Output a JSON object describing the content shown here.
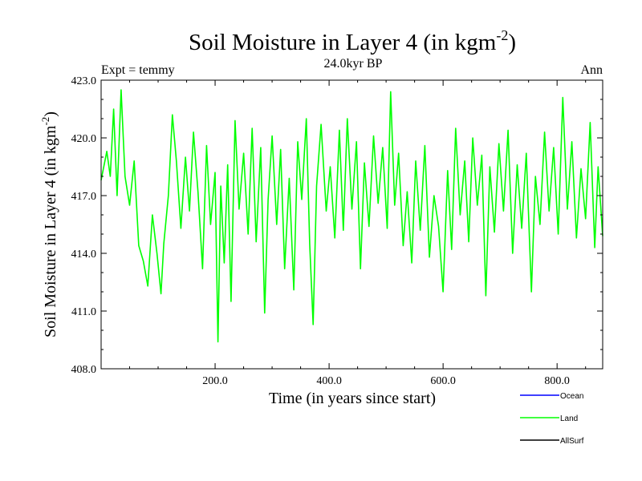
{
  "chart_data": {
    "type": "line",
    "title": "Soil Moisture in Layer 4 (in kgm",
    "title_sup": "-2",
    "title_end": ")",
    "subtitle": "24.0kyr BP",
    "left_label": "Expt = temmy",
    "right_label": "Ann",
    "xlabel": "Time (in years since start)",
    "ylabel": "Soil Moisture in Layer 4 (in kgm",
    "ylabel_sup": "-2",
    "ylabel_end": ")",
    "xlim": [
      0,
      880
    ],
    "ylim": [
      408,
      423
    ],
    "x_ticks": [
      200,
      400,
      600,
      800
    ],
    "x_tick_labels": [
      "200.0",
      "400.0",
      "600.0",
      "800.0"
    ],
    "y_ticks": [
      408,
      411,
      414,
      417,
      420,
      423
    ],
    "y_tick_labels": [
      "408.0",
      "411.0",
      "414.0",
      "417.0",
      "420.0",
      "423.0"
    ],
    "series": [
      {
        "name": "Land",
        "color": "#00ff00",
        "points": [
          [
            0,
            417.8
          ],
          [
            10,
            419.3
          ],
          [
            16,
            418.0
          ],
          [
            22,
            421.5
          ],
          [
            28,
            417.0
          ],
          [
            35,
            422.5
          ],
          [
            42,
            418.0
          ],
          [
            50,
            416.5
          ],
          [
            58,
            418.8
          ],
          [
            66,
            414.4
          ],
          [
            74,
            413.6
          ],
          [
            82,
            412.3
          ],
          [
            90,
            416.0
          ],
          [
            98,
            414.0
          ],
          [
            105,
            411.9
          ],
          [
            110,
            414.5
          ],
          [
            118,
            417.0
          ],
          [
            125,
            421.2
          ],
          [
            132,
            418.8
          ],
          [
            140,
            415.3
          ],
          [
            148,
            419.0
          ],
          [
            155,
            416.2
          ],
          [
            162,
            420.3
          ],
          [
            170,
            417.2
          ],
          [
            178,
            413.2
          ],
          [
            185,
            419.6
          ],
          [
            192,
            415.5
          ],
          [
            200,
            418.2
          ],
          [
            205,
            409.4
          ],
          [
            210,
            417.5
          ],
          [
            216,
            413.5
          ],
          [
            222,
            418.6
          ],
          [
            228,
            411.5
          ],
          [
            235,
            420.9
          ],
          [
            242,
            416.3
          ],
          [
            250,
            419.2
          ],
          [
            258,
            415.0
          ],
          [
            265,
            420.5
          ],
          [
            272,
            414.6
          ],
          [
            280,
            419.5
          ],
          [
            287,
            410.9
          ],
          [
            293,
            416.8
          ],
          [
            300,
            420.1
          ],
          [
            308,
            415.5
          ],
          [
            315,
            419.4
          ],
          [
            322,
            413.2
          ],
          [
            330,
            417.9
          ],
          [
            338,
            412.1
          ],
          [
            345,
            419.8
          ],
          [
            352,
            416.8
          ],
          [
            360,
            421.0
          ],
          [
            366,
            414.5
          ],
          [
            372,
            410.3
          ],
          [
            378,
            417.5
          ],
          [
            386,
            420.7
          ],
          [
            395,
            416.2
          ],
          [
            402,
            418.5
          ],
          [
            410,
            414.8
          ],
          [
            418,
            420.4
          ],
          [
            425,
            415.2
          ],
          [
            432,
            421.0
          ],
          [
            440,
            416.3
          ],
          [
            448,
            419.8
          ],
          [
            455,
            413.2
          ],
          [
            462,
            418.7
          ],
          [
            470,
            415.4
          ],
          [
            478,
            420.1
          ],
          [
            486,
            416.6
          ],
          [
            494,
            419.5
          ],
          [
            502,
            415.3
          ],
          [
            508,
            422.4
          ],
          [
            515,
            416.5
          ],
          [
            522,
            419.2
          ],
          [
            530,
            414.4
          ],
          [
            537,
            417.2
          ],
          [
            545,
            413.5
          ],
          [
            552,
            418.8
          ],
          [
            560,
            415.2
          ],
          [
            568,
            419.6
          ],
          [
            576,
            413.8
          ],
          [
            584,
            417.0
          ],
          [
            592,
            415.4
          ],
          [
            600,
            412.0
          ],
          [
            608,
            418.3
          ],
          [
            615,
            414.2
          ],
          [
            622,
            420.5
          ],
          [
            630,
            416.0
          ],
          [
            638,
            418.8
          ],
          [
            645,
            414.6
          ],
          [
            652,
            420.0
          ],
          [
            660,
            416.5
          ],
          [
            668,
            419.1
          ],
          [
            675,
            411.8
          ],
          [
            682,
            418.5
          ],
          [
            690,
            415.1
          ],
          [
            698,
            419.7
          ],
          [
            706,
            416.2
          ],
          [
            714,
            420.4
          ],
          [
            722,
            414.0
          ],
          [
            730,
            418.6
          ],
          [
            738,
            415.3
          ],
          [
            746,
            419.2
          ],
          [
            755,
            412.0
          ],
          [
            762,
            418.0
          ],
          [
            770,
            415.5
          ],
          [
            778,
            420.3
          ],
          [
            786,
            416.2
          ],
          [
            794,
            419.5
          ],
          [
            802,
            415.0
          ],
          [
            810,
            422.1
          ],
          [
            818,
            416.3
          ],
          [
            826,
            419.8
          ],
          [
            834,
            414.8
          ],
          [
            842,
            418.4
          ],
          [
            850,
            415.8
          ],
          [
            858,
            420.8
          ],
          [
            866,
            414.3
          ],
          [
            872,
            418.5
          ],
          [
            880,
            414.9
          ]
        ]
      }
    ],
    "legend": [
      {
        "label": "Ocean",
        "color": "#0000ff"
      },
      {
        "label": "Land",
        "color": "#00ff00"
      },
      {
        "label": "AllSurf",
        "color": "#000000"
      }
    ],
    "grid": false,
    "legend_position": "bottom-right"
  }
}
